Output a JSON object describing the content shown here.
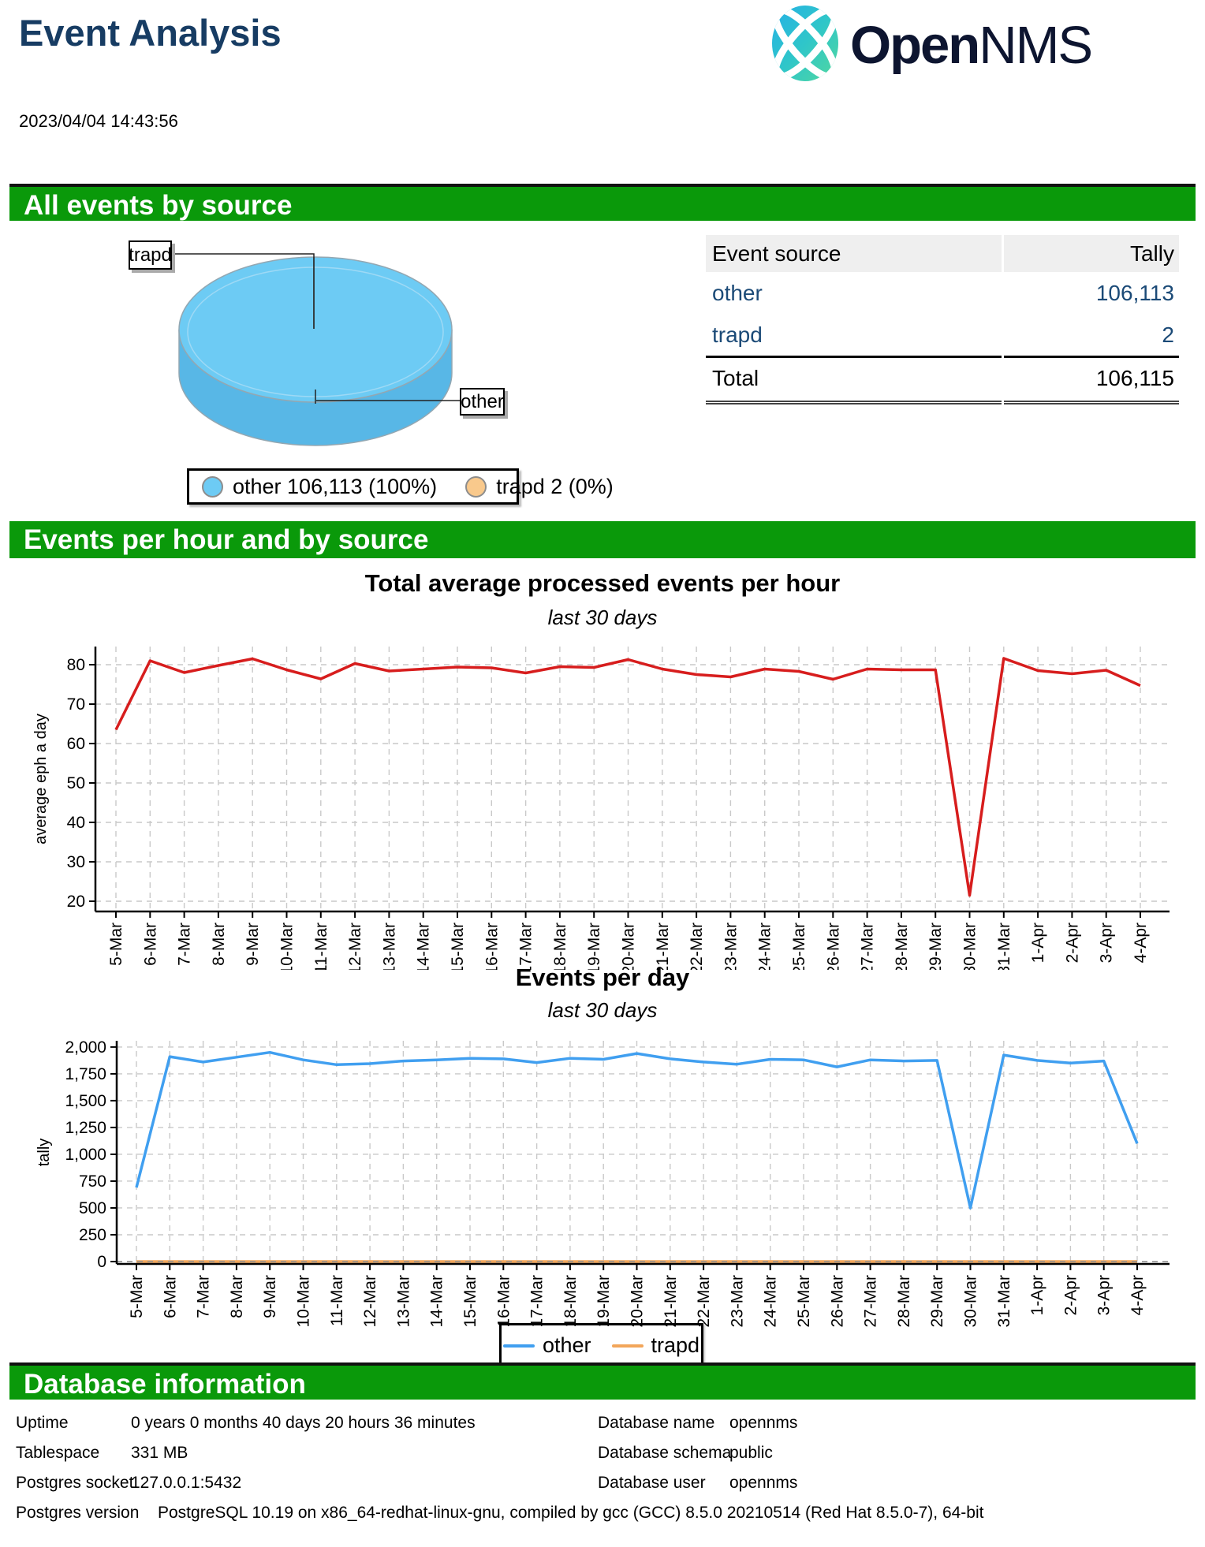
{
  "header": {
    "title": "Event Analysis",
    "logo_bold": "Open",
    "logo_light": "NMS"
  },
  "timestamp": "2023/04/04 14:43:56",
  "sections": {
    "all_events_title": "All events by source",
    "events_title": "Events per hour and by source",
    "db_title": "Database information"
  },
  "colors": {
    "section_green": "#0a990a",
    "title_navy": "#173c63",
    "link_navy": "#1b4a77",
    "red_line": "#d71d1d",
    "blue_line": "#409ff0",
    "orange_line": "#f2a65a",
    "pie_top": "#6dcbf4",
    "pie_side": "#58b7e6",
    "legend_orange": "#f9c98c"
  },
  "pie": {
    "callouts": [
      "trapd",
      "other"
    ],
    "legend": [
      {
        "label": "other 106,113 (100%)",
        "color": "#6dcbf4"
      },
      {
        "label": "trapd 2 (0%)",
        "color": "#f9c98c"
      }
    ]
  },
  "table": {
    "columns": [
      "Event source",
      "Tally"
    ],
    "rows": [
      [
        "other",
        "106,113"
      ],
      [
        "trapd",
        "2"
      ]
    ],
    "total": [
      "Total",
      "106,115"
    ]
  },
  "chart_data": [
    {
      "type": "pie",
      "title": "All events by source",
      "labels": [
        "other",
        "trapd"
      ],
      "values": [
        106113,
        2
      ],
      "percentages": [
        "100%",
        "0%"
      ],
      "colors": [
        "#6dcbf4",
        "#f9c98c"
      ],
      "color_top": "#6dcbf4",
      "color_side": "#58b7e6"
    },
    {
      "type": "line",
      "title": "Total average processed events per hour",
      "subtitle": "last 30 days",
      "ylabel": "average eph a day",
      "xlabel": "",
      "ylim": [
        17.4,
        84.6
      ],
      "yticks": [
        20,
        30,
        40,
        50,
        60,
        70,
        80
      ],
      "ytick_labels": [
        "20",
        "30",
        "40",
        "50",
        "60",
        "70",
        "80"
      ],
      "grid": true,
      "categories": [
        "5-Mar",
        "6-Mar",
        "7-Mar",
        "8-Mar",
        "9-Mar",
        "10-Mar",
        "11-Mar",
        "12-Mar",
        "13-Mar",
        "14-Mar",
        "15-Mar",
        "16-Mar",
        "17-Mar",
        "18-Mar",
        "19-Mar",
        "20-Mar",
        "21-Mar",
        "22-Mar",
        "23-Mar",
        "24-Mar",
        "25-Mar",
        "26-Mar",
        "27-Mar",
        "28-Mar",
        "29-Mar",
        "30-Mar",
        "31-Mar",
        "1-Apr",
        "2-Apr",
        "3-Apr",
        "4-Apr"
      ],
      "series": [
        {
          "name": "average eph",
          "color": "#d71d1d",
          "values": [
            63.5,
            81.0,
            78.0,
            79.8,
            81.5,
            78.7,
            76.4,
            80.3,
            78.4,
            78.9,
            79.4,
            79.2,
            77.9,
            79.5,
            79.3,
            81.3,
            78.9,
            77.5,
            76.9,
            78.9,
            78.3,
            76.3,
            78.9,
            78.7,
            78.7,
            21.5,
            81.6,
            78.5,
            77.7,
            78.6,
            74.7
          ]
        }
      ]
    },
    {
      "type": "line",
      "title": "Events per day",
      "subtitle": "last 30 days",
      "ylabel": "tally",
      "xlabel": "",
      "ylim": [
        -22,
        2058
      ],
      "yticks": [
        0,
        250,
        500,
        750,
        1000,
        1250,
        1500,
        1750,
        2000
      ],
      "ytick_labels": [
        "0",
        "250",
        "500",
        "750",
        "1,000",
        "1,250",
        "1,500",
        "1,750",
        "2,000"
      ],
      "grid": true,
      "legend_position": "bottom",
      "categories": [
        "5-Mar",
        "6-Mar",
        "7-Mar",
        "8-Mar",
        "9-Mar",
        "10-Mar",
        "11-Mar",
        "12-Mar",
        "13-Mar",
        "14-Mar",
        "15-Mar",
        "16-Mar",
        "17-Mar",
        "18-Mar",
        "19-Mar",
        "20-Mar",
        "21-Mar",
        "22-Mar",
        "23-Mar",
        "24-Mar",
        "25-Mar",
        "26-Mar",
        "27-Mar",
        "28-Mar",
        "29-Mar",
        "30-Mar",
        "31-Mar",
        "1-Apr",
        "2-Apr",
        "3-Apr",
        "4-Apr"
      ],
      "series": [
        {
          "name": "other",
          "color": "#409ff0",
          "values": [
            690,
            1910,
            1860,
            1905,
            1950,
            1880,
            1835,
            1845,
            1870,
            1880,
            1895,
            1890,
            1855,
            1895,
            1885,
            1940,
            1890,
            1860,
            1840,
            1885,
            1880,
            1815,
            1880,
            1870,
            1875,
            500,
            1925,
            1875,
            1850,
            1870,
            1100
          ]
        },
        {
          "name": "trapd",
          "color": "#f2a65a",
          "values": [
            0,
            0,
            0,
            0,
            0,
            0,
            0,
            0,
            0,
            0,
            0,
            0,
            0,
            0,
            0,
            0,
            0,
            0,
            0,
            0,
            0,
            0,
            0,
            0,
            0,
            0,
            0,
            0,
            0,
            0,
            0
          ]
        }
      ]
    }
  ],
  "line_legend": [
    {
      "label": "other",
      "color": "#409ff0"
    },
    {
      "label": "trapd",
      "color": "#f2a65a"
    }
  ],
  "database": {
    "rows": [
      {
        "label": "Uptime",
        "value": "0 years 0 months 40 days 20 hours 36 minutes",
        "label2": "Database name",
        "value2": "opennms"
      },
      {
        "label": "Tablespace",
        "value": "331 MB",
        "label2": "Database schema",
        "value2": "public"
      },
      {
        "label": "Postgres socket",
        "value": "127.0.0.1:5432",
        "label2": "Database user",
        "value2": "opennms"
      },
      {
        "label": "Postgres version",
        "value": "PostgreSQL 10.19 on x86_64-redhat-linux-gnu, compiled by gcc (GCC) 8.5.0 20210514 (Red Hat 8.5.0-7), 64-bit"
      }
    ]
  }
}
